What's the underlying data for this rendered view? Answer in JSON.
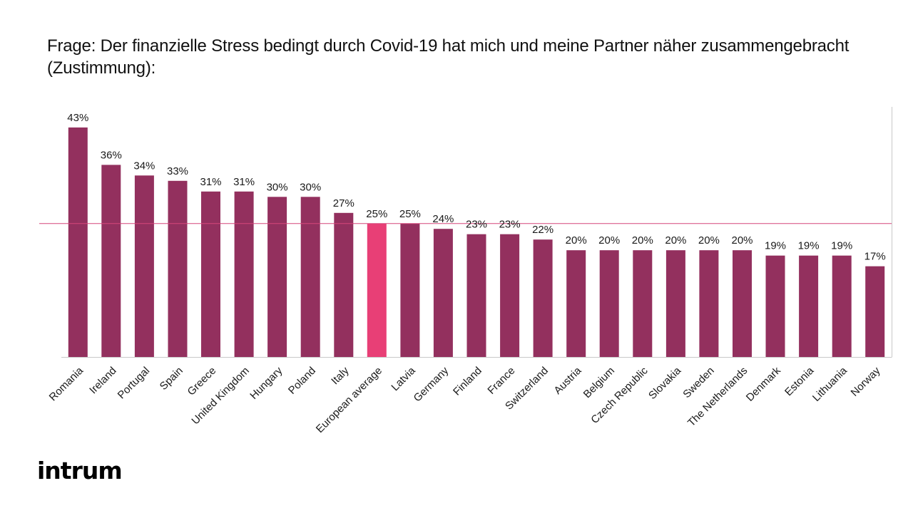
{
  "title": "Frage: Der finanzielle Stress bedingt durch Covid-19 hat mich und meine Partner näher zusammengebracht (Zustimmung):",
  "brand": "intrum",
  "chart_data": {
    "type": "bar",
    "title": "Frage: Der finanzielle Stress bedingt durch Covid-19 hat mich und meine Partner näher zusammengebracht (Zustimmung):",
    "xlabel": "",
    "ylabel": "",
    "ylim": [
      0,
      45
    ],
    "grid": false,
    "value_suffix": "%",
    "reference_line": {
      "value": 25
    },
    "categories": [
      "Romania",
      "Ireland",
      "Portugal",
      "Spain",
      "Greece",
      "United Kingdom",
      "Hungary",
      "Poland",
      "Italy",
      "European average",
      "Latvia",
      "Germany",
      "Finland",
      "France",
      "Switzerland",
      "Austria",
      "Belgium",
      "Czech Republic",
      "Slovakia",
      "Sweden",
      "The Netherlands",
      "Denmark",
      "Estonia",
      "Lithuania",
      "Norway"
    ],
    "values": [
      43,
      36,
      34,
      33,
      31,
      31,
      30,
      30,
      27,
      25,
      25,
      24,
      23,
      23,
      22,
      20,
      20,
      20,
      20,
      20,
      20,
      19,
      19,
      19,
      17
    ],
    "highlight_category": "European average",
    "colors": {
      "bar": "#93305e",
      "highlight": "#e83f76",
      "reference_line": "#d6467a",
      "axis": "#c8c8c8",
      "text": "#1a1a1a"
    }
  }
}
